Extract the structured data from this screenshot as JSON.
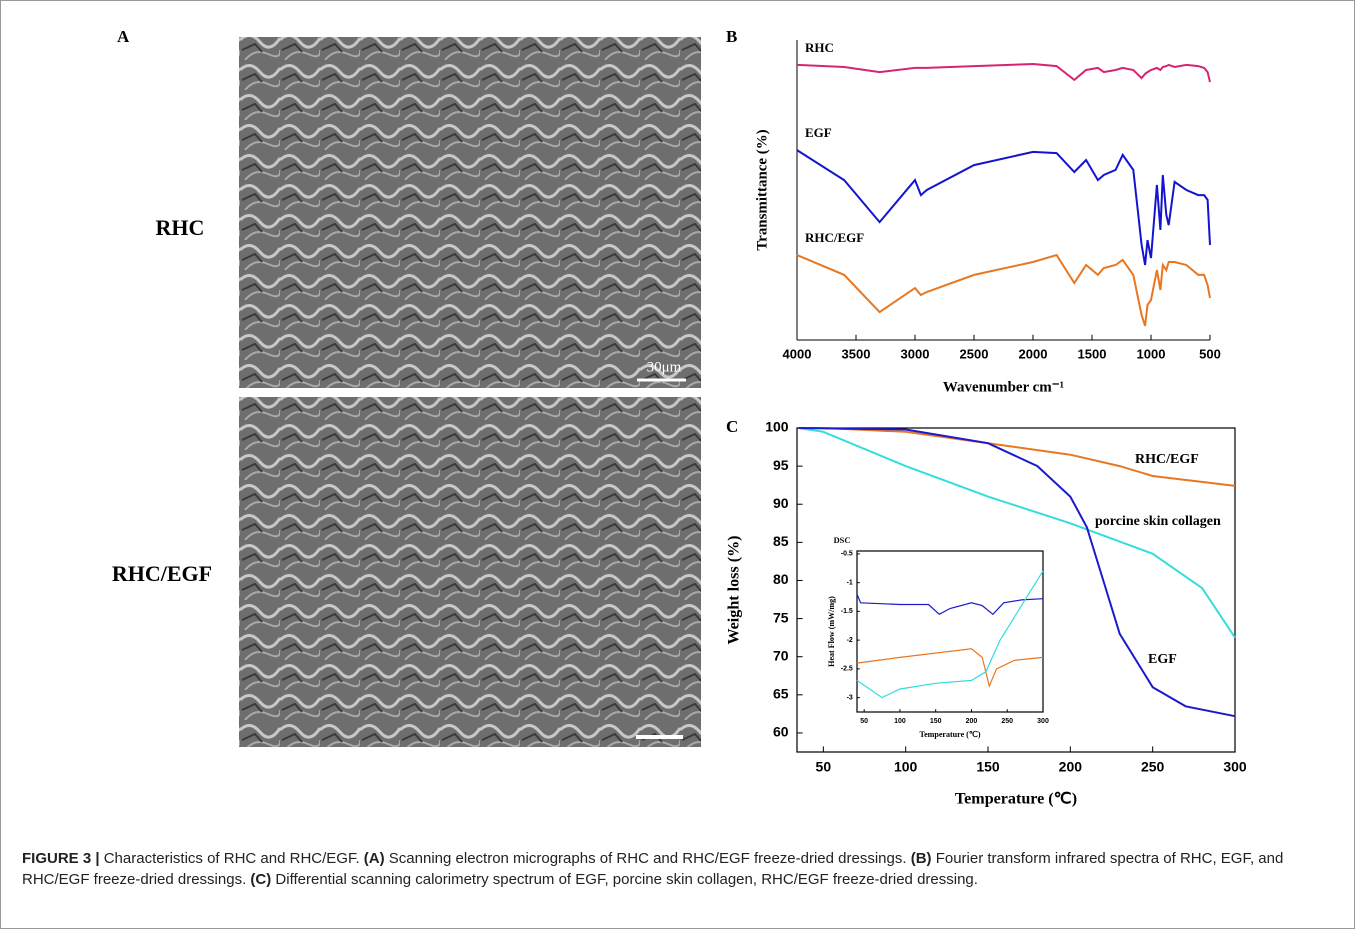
{
  "panel_labels": [
    "A",
    "B",
    "C"
  ],
  "sem": {
    "rows": [
      "RHC",
      "RHC/EGF"
    ],
    "scale_bar": "30μm"
  },
  "chart_data": [
    {
      "type": "line",
      "y_label": "Transmittance (%)",
      "x_label": "Wavenumber cm⁻¹",
      "xlim": [
        4000,
        500
      ],
      "xticks": [
        4000,
        3500,
        3000,
        2500,
        2000,
        1500,
        1000,
        500
      ],
      "ylim": [
        0,
        100
      ],
      "x": [
        4000,
        3600,
        3300,
        3000,
        2950,
        2900,
        2500,
        2000,
        1800,
        1650,
        1550,
        1450,
        1400,
        1300,
        1240,
        1150,
        1080,
        1050,
        1030,
        1000,
        950,
        920,
        900,
        870,
        850,
        800,
        700,
        600,
        550,
        520,
        500
      ],
      "series": [
        {
          "name": "RHC",
          "color": "#d6246e",
          "values": [
            91.7,
            91,
            89.3,
            90.7,
            90.7,
            90.7,
            91.3,
            92,
            91.3,
            86.7,
            90,
            90.7,
            89.3,
            90,
            90.7,
            90,
            87.3,
            88.7,
            89.3,
            90,
            90.7,
            90,
            91,
            91.3,
            91.7,
            91,
            91.7,
            91.3,
            90.7,
            89.3,
            86
          ]
        },
        {
          "name": "EGF",
          "color": "#1414d0",
          "values": [
            63.3,
            53.3,
            39.3,
            53.3,
            48.3,
            50,
            58.3,
            62.7,
            62.3,
            56,
            60,
            53.3,
            55,
            56.7,
            61.7,
            56.7,
            31.7,
            25,
            33.3,
            27.3,
            51.7,
            36.7,
            55,
            41.7,
            38.3,
            52.7,
            50,
            48.3,
            48.3,
            46.7,
            31.7
          ]
        },
        {
          "name": "RHC/EGF",
          "color": "#e87722",
          "values": [
            28.3,
            21.7,
            9.3,
            17.3,
            15,
            16,
            21.7,
            26,
            28.3,
            19,
            25,
            21.7,
            24,
            25,
            26.7,
            21.7,
            8.3,
            4.7,
            11.7,
            13.3,
            23.3,
            16.7,
            25,
            23.3,
            26,
            26,
            25,
            21.7,
            21.7,
            18.3,
            14
          ]
        }
      ]
    },
    {
      "type": "line",
      "y_label": "Weight loss (%)",
      "x_label": "Temperature (℃)",
      "xlim": [
        34,
        300
      ],
      "xticks": [
        50,
        100,
        150,
        200,
        250,
        300
      ],
      "ylim": [
        57.5,
        100
      ],
      "yticks": [
        60,
        65,
        70,
        75,
        80,
        85,
        90,
        95,
        100
      ],
      "series": [
        {
          "name": "RHC/EGF",
          "color": "#e87722",
          "x": [
            35,
            50,
            100,
            150,
            200,
            230,
            250,
            300
          ],
          "values": [
            100,
            100,
            99.5,
            98,
            96.5,
            95,
            93.7,
            92.4
          ]
        },
        {
          "name": "porcine skin collagen",
          "color": "#33dddd",
          "x": [
            35,
            50,
            100,
            150,
            200,
            250,
            280,
            300
          ],
          "values": [
            100,
            99.5,
            95,
            91,
            87.5,
            83.5,
            79,
            72.5
          ]
        },
        {
          "name": "EGF",
          "color": "#1a1acc",
          "x": [
            35,
            100,
            150,
            180,
            200,
            210,
            220,
            230,
            250,
            270,
            300
          ],
          "values": [
            100,
            99.8,
            98,
            95,
            91,
            87,
            80,
            73,
            66,
            63.5,
            62.2
          ]
        }
      ]
    },
    {
      "type": "line",
      "title": "DSC",
      "y_label": "Heat Flow (mW/mg)",
      "x_label": "Temperature (℃)",
      "xlim": [
        40,
        300
      ],
      "xticks": [
        50,
        100,
        150,
        200,
        250,
        300
      ],
      "ylim": [
        -3.25,
        -0.45
      ],
      "yticks": [
        -0.5,
        -1.0,
        -1.5,
        -2.0,
        -2.5,
        -3.0
      ],
      "series": [
        {
          "color": "#1a1acc",
          "x": [
            40,
            45,
            100,
            140,
            155,
            170,
            200,
            215,
            230,
            245,
            270,
            300
          ],
          "values": [
            -1.2,
            -1.35,
            -1.38,
            -1.38,
            -1.55,
            -1.45,
            -1.35,
            -1.4,
            -1.55,
            -1.35,
            -1.3,
            -1.28
          ]
        },
        {
          "color": "#e87722",
          "x": [
            40,
            100,
            200,
            215,
            225,
            235,
            260,
            300
          ],
          "values": [
            -2.4,
            -2.3,
            -2.15,
            -2.3,
            -2.8,
            -2.5,
            -2.35,
            -2.3
          ]
        },
        {
          "color": "#33dddd",
          "x": [
            40,
            75,
            100,
            150,
            200,
            220,
            240,
            270,
            300
          ],
          "values": [
            -2.7,
            -3.0,
            -2.85,
            -2.75,
            -2.7,
            -2.55,
            -2.0,
            -1.4,
            -0.8
          ]
        }
      ]
    }
  ],
  "caption": {
    "label": "FIGURE 3 |",
    "text": "Characteristics of RHC and RHC/EGF.",
    "items": [
      {
        "tag": "(A)",
        "text": "Scanning electron micrographs of RHC and RHC/EGF freeze-dried dressings."
      },
      {
        "tag": "(B)",
        "text": "Fourier transform infrared spectra of RHC, EGF, and RHC/EGF freeze-dried dressings."
      },
      {
        "tag": "(C)",
        "text": "Differential scanning calorimetry spectrum of EGF, porcine skin collagen, RHC/EGF freeze-dried dressing."
      }
    ]
  }
}
